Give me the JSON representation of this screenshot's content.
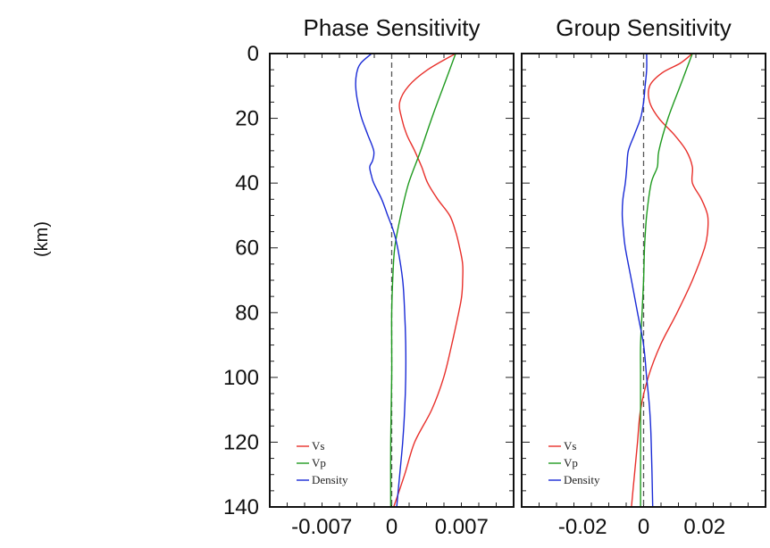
{
  "y_axis_label": "(km)",
  "y_ticks": [
    "0",
    "20",
    "40",
    "60",
    "80",
    "100",
    "120",
    "140"
  ],
  "chart_data": [
    {
      "type": "line",
      "title": "Phase Sensitivity",
      "ylim": [
        0,
        140
      ],
      "y_reversed": true,
      "xlim": [
        -0.0122,
        0.0122
      ],
      "x_tick_labels": [
        "-0.007",
        "0",
        "0.007"
      ],
      "x_tick_values": [
        -0.007,
        0,
        0.007
      ],
      "zero_line": "dashed",
      "legend": [
        "Vs",
        "Vp",
        "Density"
      ],
      "legend_position": "bottom-left",
      "series": [
        {
          "name": "Vs",
          "color": "#e8302b",
          "depth": [
            0,
            5,
            10,
            15,
            20,
            25,
            30,
            35,
            40,
            45,
            50,
            55,
            60,
            65,
            70,
            75,
            80,
            90,
            100,
            110,
            120,
            130,
            140
          ],
          "values": [
            0.0064,
            0.0036,
            0.0017,
            0.0008,
            0.001,
            0.0015,
            0.0023,
            0.003,
            0.0036,
            0.0046,
            0.0058,
            0.0064,
            0.0068,
            0.0071,
            0.0071,
            0.007,
            0.0067,
            0.006,
            0.0052,
            0.004,
            0.0023,
            0.0013,
            0.0002
          ]
        },
        {
          "name": "Vp",
          "color": "#1f9a1f",
          "depth": [
            0,
            10,
            20,
            30,
            40,
            50,
            60,
            70,
            80,
            90,
            100,
            120,
            140
          ],
          "values": [
            0.0064,
            0.0052,
            0.004,
            0.0029,
            0.0017,
            0.0009,
            0.0003,
            0.0001,
            0.0,
            0.0,
            0.0,
            -0.0001,
            -0.0001
          ]
        },
        {
          "name": "Density",
          "color": "#1a2bd6",
          "depth": [
            0,
            3,
            6,
            10,
            15,
            20,
            25,
            30,
            33,
            35,
            38,
            40,
            45,
            50,
            55,
            60,
            70,
            80,
            90,
            100,
            110,
            120,
            130,
            140
          ],
          "values": [
            -0.002,
            -0.0031,
            -0.0035,
            -0.0036,
            -0.0034,
            -0.003,
            -0.0024,
            -0.0018,
            -0.0019,
            -0.0022,
            -0.002,
            -0.0018,
            -0.001,
            -0.0004,
            0.0002,
            0.0006,
            0.0011,
            0.0013,
            0.0014,
            0.0014,
            0.0013,
            0.0011,
            0.0008,
            0.0005
          ]
        }
      ]
    },
    {
      "type": "line",
      "title": "Group Sensitivity",
      "ylim": [
        0,
        140
      ],
      "y_reversed": true,
      "xlim": [
        -0.04,
        0.04
      ],
      "x_tick_labels": [
        "-0.02",
        "0",
        "0.02"
      ],
      "x_tick_values": [
        -0.02,
        0,
        0.02
      ],
      "zero_line": "dashed",
      "legend": [
        "Vs",
        "Vp",
        "Density"
      ],
      "legend_position": "bottom-left",
      "series": [
        {
          "name": "Vs",
          "color": "#e8302b",
          "depth": [
            0,
            3,
            6,
            10,
            15,
            20,
            25,
            30,
            35,
            40,
            45,
            50,
            55,
            60,
            70,
            80,
            90,
            100,
            110,
            120,
            130,
            140
          ],
          "values": [
            0.016,
            0.012,
            0.006,
            0.002,
            0.002,
            0.005,
            0.01,
            0.014,
            0.016,
            0.016,
            0.019,
            0.021,
            0.021,
            0.02,
            0.016,
            0.011,
            0.0055,
            0.0015,
            -0.001,
            -0.002,
            -0.003,
            -0.004
          ]
        },
        {
          "name": "Vp",
          "color": "#1f9a1f",
          "depth": [
            0,
            10,
            20,
            30,
            35,
            40,
            50,
            60,
            70,
            80,
            90,
            100,
            120,
            140
          ],
          "values": [
            0.016,
            0.012,
            0.008,
            0.005,
            0.0045,
            0.0025,
            0.001,
            0.0003,
            0.0,
            -0.0005,
            -0.001,
            -0.001,
            -0.001,
            -0.001
          ]
        },
        {
          "name": "Density",
          "color": "#1a2bd6",
          "depth": [
            0,
            5,
            10,
            15,
            20,
            25,
            30,
            35,
            40,
            45,
            50,
            55,
            60,
            70,
            80,
            90,
            100,
            110,
            120,
            140
          ],
          "values": [
            0.001,
            0.001,
            0.0005,
            0.0,
            -0.001,
            -0.003,
            -0.005,
            -0.0055,
            -0.006,
            -0.0068,
            -0.007,
            -0.0066,
            -0.006,
            -0.004,
            -0.002,
            0.0,
            0.001,
            0.002,
            0.0025,
            0.003
          ]
        }
      ]
    }
  ]
}
